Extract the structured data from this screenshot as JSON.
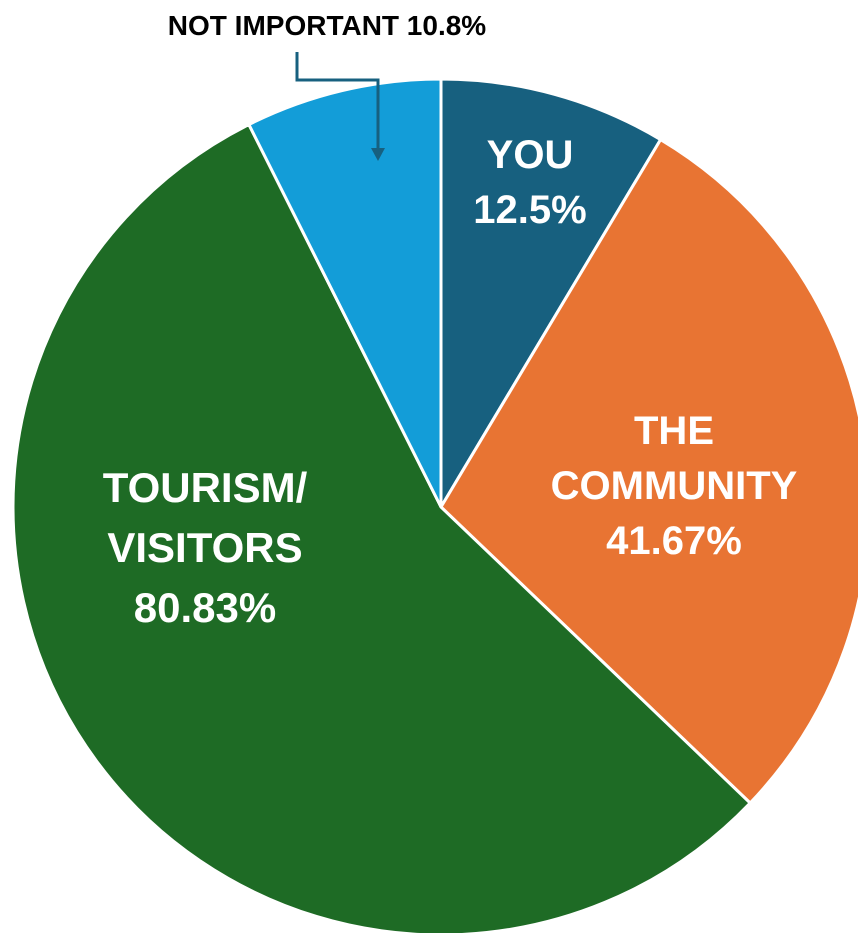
{
  "chart_data": {
    "type": "pie",
    "slices": [
      {
        "name": "YOU",
        "label_lines": [
          "YOU",
          "12.5%"
        ],
        "value": 12.5,
        "color": "#17607f"
      },
      {
        "name": "THE COMMUNITY",
        "label_lines": [
          "THE",
          "COMMUNITY",
          "41.67%"
        ],
        "value": 41.67,
        "color": "#e87433"
      },
      {
        "name": "TOURISM/ VISITORS",
        "label_lines": [
          "TOURISM/",
          "VISITORS",
          "80.83%"
        ],
        "value": 80.83,
        "color": "#1e6b25"
      },
      {
        "name": "NOT IMPORTANT",
        "label_lines": [
          "NOT IMPORTANT 10.8%"
        ],
        "value": 10.8,
        "color": "#139dd8"
      }
    ],
    "start_angle_deg": 0,
    "direction": "clockwise",
    "slice_border_color": "#ffffff"
  }
}
